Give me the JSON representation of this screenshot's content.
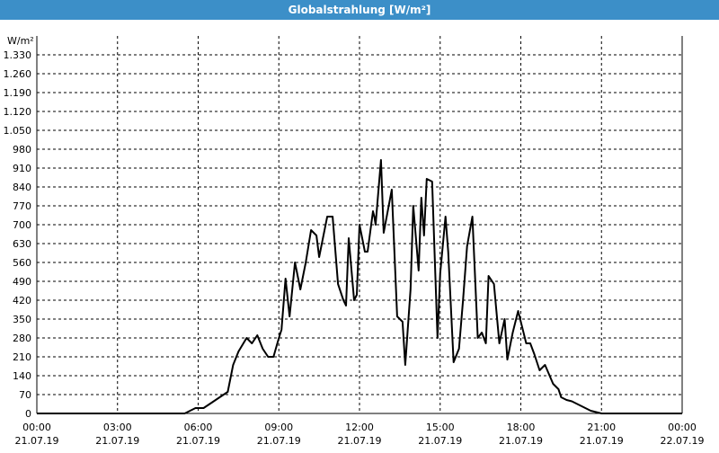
{
  "window": {
    "title": "Globalstrahlung [W/m²]"
  },
  "colors": {
    "titlebar": "#3c8fc8",
    "line": "#000000",
    "grid": "#000000"
  },
  "chart_data": {
    "type": "line",
    "title": "Globalstrahlung [W/m²]",
    "ylabel": "W/m²",
    "xlabel": "",
    "ylim": [
      0,
      1400
    ],
    "xlim": [
      "2019-07-21T00:00",
      "2019-07-22T00:00"
    ],
    "grid": true,
    "yticks": [
      0,
      70,
      140,
      210,
      280,
      350,
      420,
      490,
      560,
      630,
      700,
      770,
      840,
      910,
      980,
      1050,
      1120,
      1190,
      1260,
      1330
    ],
    "ytick_labels": [
      "0",
      "70",
      "140",
      "210",
      "280",
      "350",
      "420",
      "490",
      "560",
      "630",
      "700",
      "770",
      "840",
      "910",
      "980",
      "1.050",
      "1.120",
      "1.190",
      "1.260",
      "1.330"
    ],
    "xticks": [
      {
        "time": "00:00",
        "date": "21.07.19",
        "hour": 0
      },
      {
        "time": "03:00",
        "date": "21.07.19",
        "hour": 3
      },
      {
        "time": "06:00",
        "date": "21.07.19",
        "hour": 6
      },
      {
        "time": "09:00",
        "date": "21.07.19",
        "hour": 9
      },
      {
        "time": "12:00",
        "date": "21.07.19",
        "hour": 12
      },
      {
        "time": "15:00",
        "date": "21.07.19",
        "hour": 15
      },
      {
        "time": "18:00",
        "date": "21.07.19",
        "hour": 18
      },
      {
        "time": "21:00",
        "date": "21.07.19",
        "hour": 21
      },
      {
        "time": "00:00",
        "date": "22.07.19",
        "hour": 24
      }
    ],
    "series": [
      {
        "x": [
          0,
          5.5,
          5.7,
          5.9,
          6.2,
          6.5,
          6.8,
          7.1,
          7.3,
          7.5,
          7.8,
          8.0,
          8.2,
          8.4,
          8.6,
          8.8,
          9.0,
          9.1,
          9.25,
          9.4,
          9.6,
          9.8,
          10.0,
          10.2,
          10.4,
          10.5,
          10.8,
          11.0,
          11.2,
          11.4,
          11.5,
          11.6,
          11.8,
          11.9,
          12.0,
          12.2,
          12.3,
          12.5,
          12.55,
          12.6,
          12.8,
          12.9,
          13.2,
          13.4,
          13.6,
          13.7,
          13.9,
          14.0,
          14.2,
          14.3,
          14.4,
          14.5,
          14.7,
          14.9,
          15.0,
          15.2,
          15.3,
          15.5,
          15.7,
          15.85,
          16.0,
          16.2,
          16.4,
          16.55,
          16.7,
          16.8,
          17.0,
          17.2,
          17.4,
          17.5,
          17.7,
          17.9,
          18.0,
          18.2,
          18.35,
          18.5,
          18.7,
          18.9,
          19.2,
          19.4,
          19.5,
          19.7,
          19.9,
          20.0,
          20.2,
          20.4,
          20.6,
          20.8,
          21.0,
          21.3,
          24.0
        ],
        "values": [
          0,
          0,
          10,
          20,
          20,
          40,
          60,
          80,
          180,
          230,
          280,
          260,
          290,
          240,
          210,
          210,
          280,
          310,
          500,
          360,
          560,
          460,
          560,
          680,
          660,
          580,
          730,
          730,
          480,
          420,
          400,
          650,
          420,
          440,
          700,
          600,
          600,
          750,
          730,
          700,
          940,
          670,
          830,
          360,
          340,
          180,
          460,
          770,
          530,
          800,
          660,
          870,
          860,
          280,
          520,
          730,
          600,
          190,
          240,
          420,
          620,
          730,
          280,
          300,
          260,
          510,
          480,
          260,
          350,
          200,
          300,
          380,
          340,
          260,
          260,
          220,
          160,
          180,
          110,
          90,
          60,
          50,
          45,
          40,
          30,
          20,
          10,
          5,
          0,
          0,
          0
        ]
      }
    ]
  }
}
